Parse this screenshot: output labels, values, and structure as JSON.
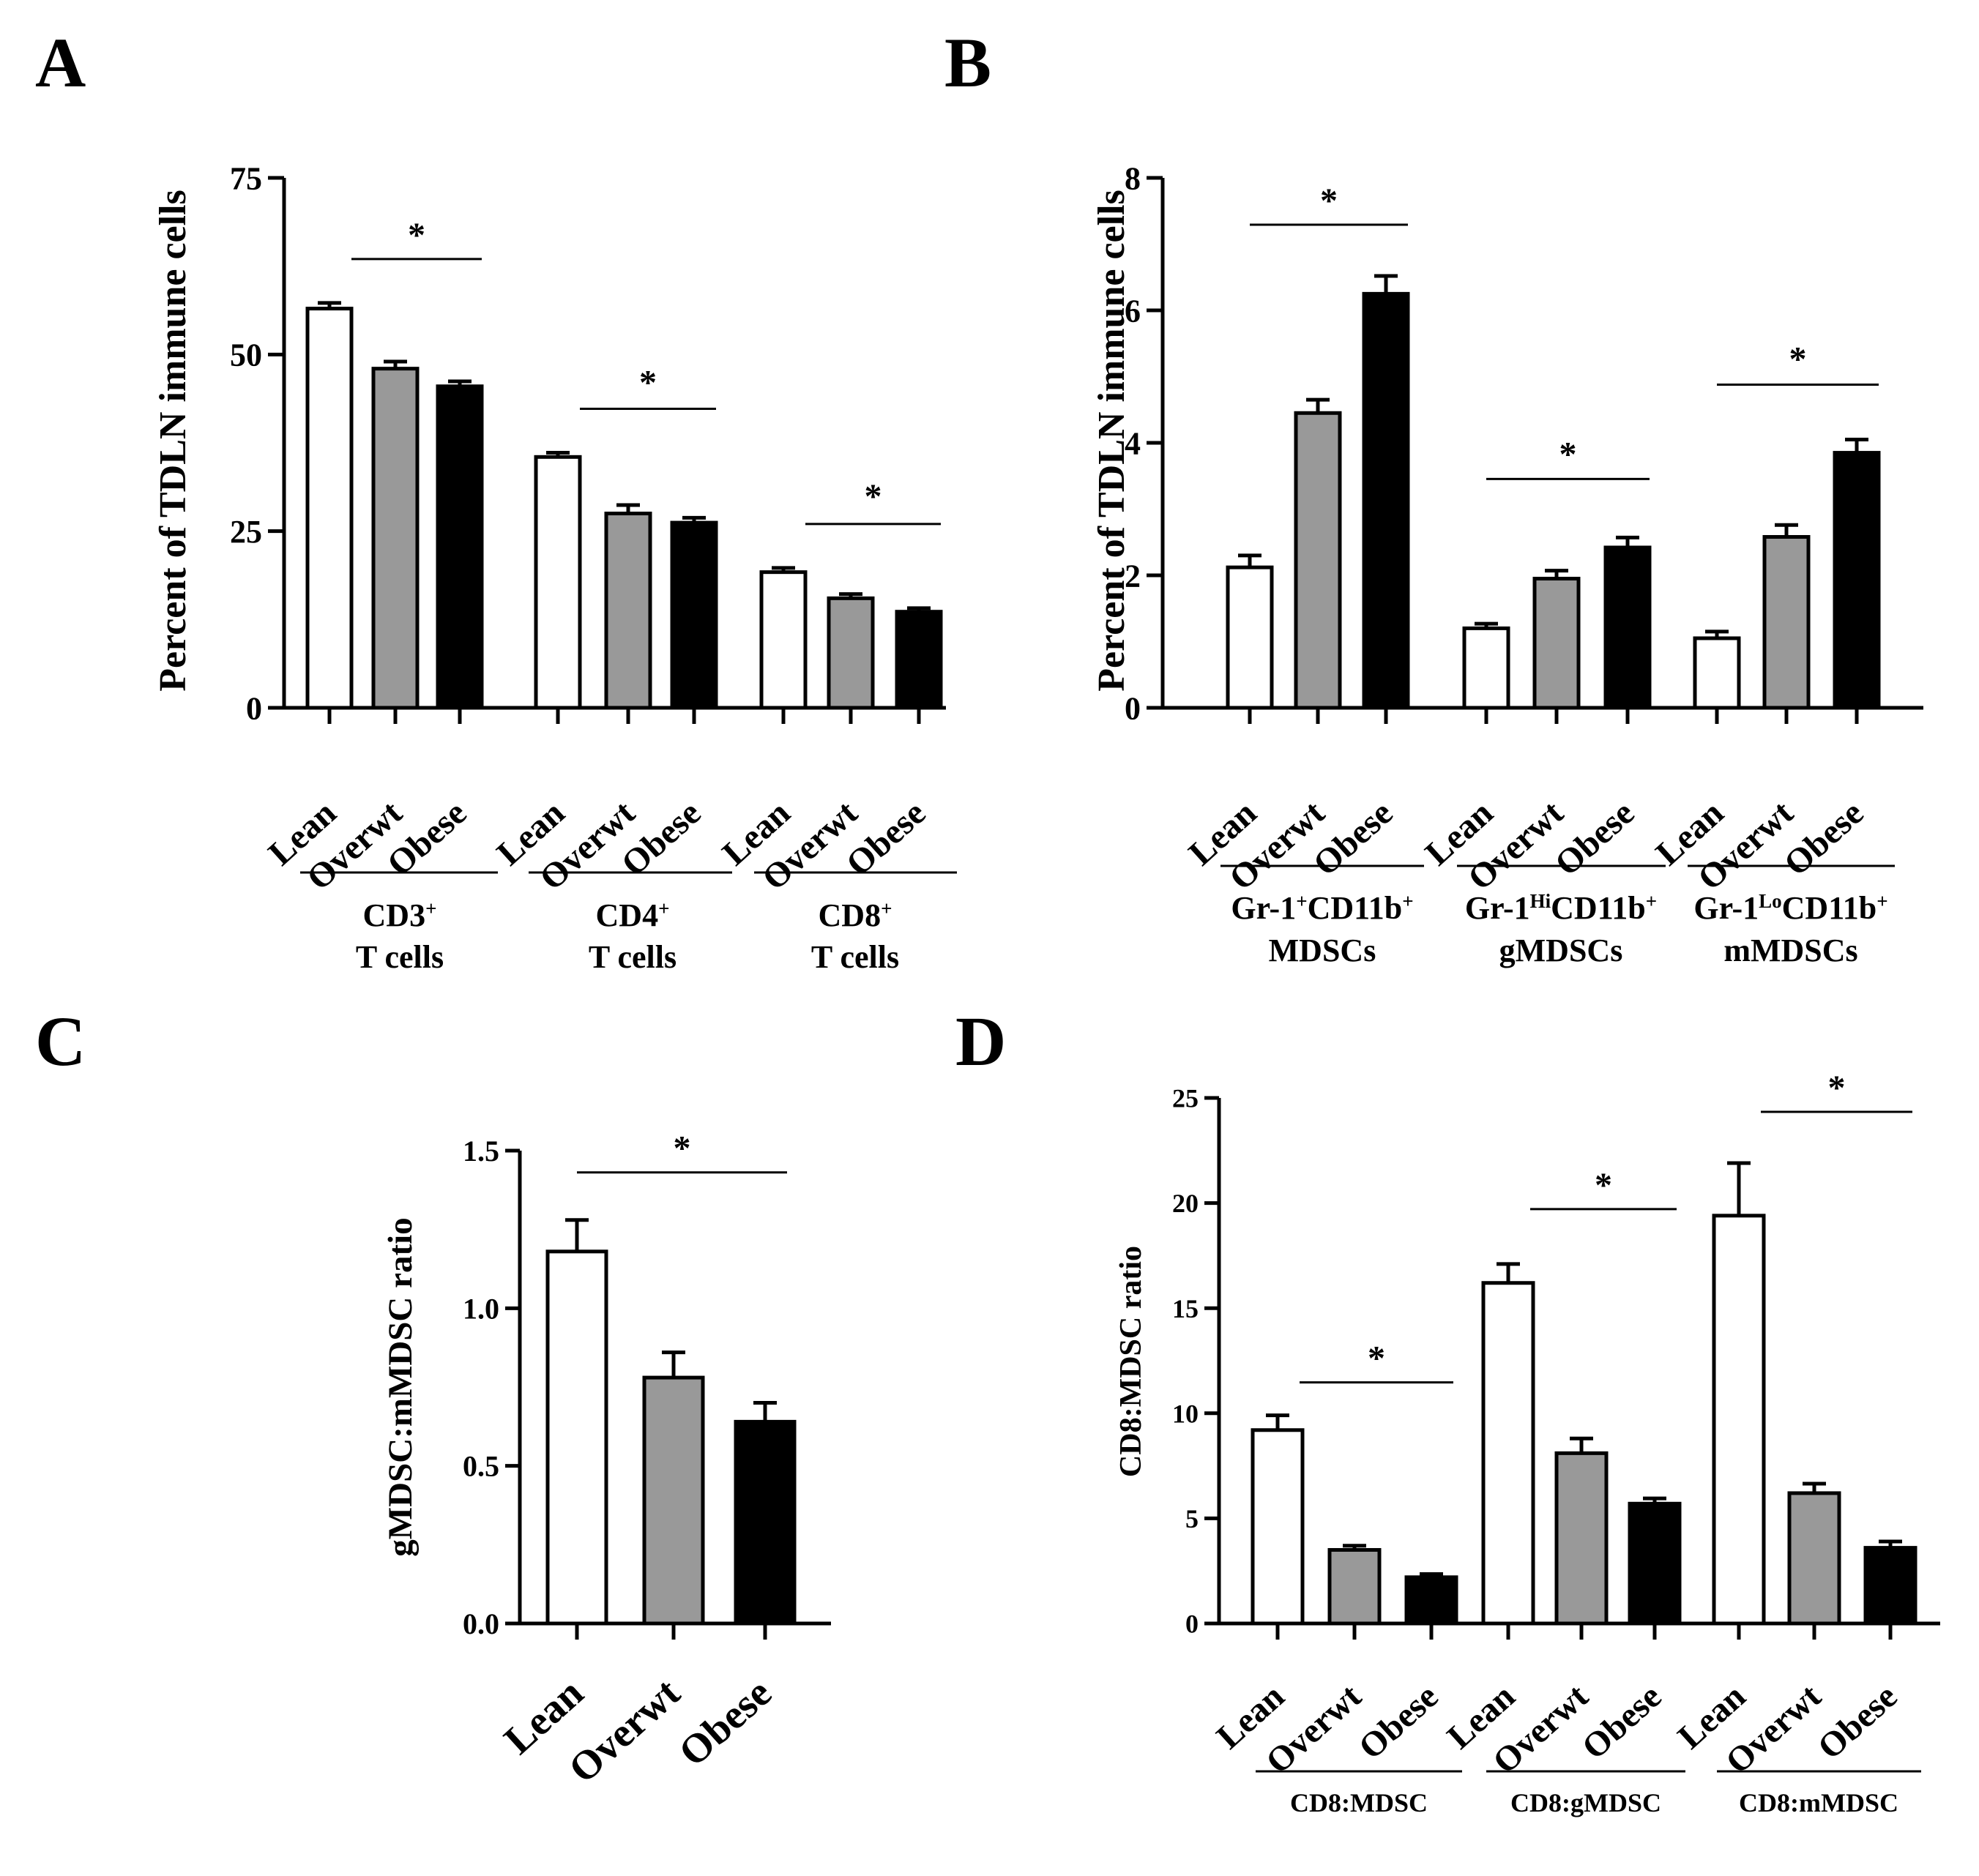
{
  "chart_data": [
    {
      "panel_letter": "A",
      "type": "bar",
      "ylabel": "Percent of TDLN immune cells",
      "ylim": [
        0,
        75
      ],
      "yticks": [
        "0",
        "25",
        "50",
        "75"
      ],
      "bar_labels": [
        "Lean",
        "Overwt",
        "Obese"
      ],
      "bar_colors": [
        "#ffffff",
        "#999999",
        "#000000"
      ],
      "groups": [
        {
          "label_lines": [
            "CD3|+",
            "T cells"
          ],
          "values": [
            56.5,
            48.0,
            45.5
          ],
          "errors": [
            0.8,
            1.0,
            0.7
          ],
          "sig": "*"
        },
        {
          "label_lines": [
            "CD4|+",
            "T cells"
          ],
          "values": [
            35.5,
            27.5,
            26.2
          ],
          "errors": [
            0.6,
            1.2,
            0.7
          ],
          "sig": "*"
        },
        {
          "label_lines": [
            "CD8|+",
            "T cells"
          ],
          "values": [
            19.2,
            15.5,
            13.6
          ],
          "errors": [
            0.6,
            0.6,
            0.5
          ],
          "sig": "*"
        }
      ]
    },
    {
      "panel_letter": "B",
      "type": "bar",
      "ylabel": "Percent of TDLN immune cells",
      "ylim": [
        0,
        8
      ],
      "yticks": [
        "0",
        "2",
        "4",
        "6",
        "8"
      ],
      "bar_labels": [
        "Lean",
        "Overwt",
        "Obese"
      ],
      "bar_colors": [
        "#ffffff",
        "#999999",
        "#000000"
      ],
      "groups": [
        {
          "label_lines": [
            "Gr-1|+|CD11b|+",
            "MDSCs"
          ],
          "values": [
            2.12,
            4.45,
            6.25
          ],
          "errors": [
            0.18,
            0.2,
            0.27
          ],
          "sig": "*"
        },
        {
          "label_lines": [
            "Gr-1|Hi|CD11b|+",
            "gMDSCs"
          ],
          "values": [
            1.2,
            1.95,
            2.42
          ],
          "errors": [
            0.07,
            0.12,
            0.15
          ],
          "sig": "*"
        },
        {
          "label_lines": [
            "Gr-1|Lo|CD11b|+",
            "mMDSCs"
          ],
          "values": [
            1.05,
            2.58,
            3.85
          ],
          "errors": [
            0.1,
            0.18,
            0.2
          ],
          "sig": "*"
        }
      ]
    },
    {
      "panel_letter": "C",
      "type": "bar",
      "ylabel": "gMDSC:mMDSC ratio",
      "ylim": [
        0,
        1.5
      ],
      "yticks": [
        "0.0",
        "0.5",
        "1.0",
        "1.5"
      ],
      "bar_labels": [
        "Lean",
        "Overwt",
        "Obese"
      ],
      "bar_colors": [
        "#ffffff",
        "#999999",
        "#000000"
      ],
      "groups": [
        {
          "label_lines": [],
          "values": [
            1.18,
            0.78,
            0.64
          ],
          "errors": [
            0.1,
            0.08,
            0.06
          ],
          "sig": "*"
        }
      ]
    },
    {
      "panel_letter": "D",
      "type": "bar",
      "ylabel": "CD8:MDSC ratio",
      "ylim": [
        0,
        25
      ],
      "yticks": [
        "0",
        "5",
        "10",
        "15",
        "20",
        "25"
      ],
      "bar_labels": [
        "Lean",
        "Overwt",
        "Obese"
      ],
      "bar_colors": [
        "#ffffff",
        "#999999",
        "#000000"
      ],
      "groups": [
        {
          "label_lines": [
            "CD8:MDSC"
          ],
          "values": [
            9.2,
            3.5,
            2.2
          ],
          "errors": [
            0.7,
            0.2,
            0.15
          ],
          "sig": "*"
        },
        {
          "label_lines": [
            "CD8:gMDSC"
          ],
          "values": [
            16.2,
            8.1,
            5.7
          ],
          "errors": [
            0.9,
            0.7,
            0.25
          ],
          "sig": "*"
        },
        {
          "label_lines": [
            "CD8:mMDSC"
          ],
          "values": [
            19.4,
            6.2,
            3.6
          ],
          "errors": [
            2.5,
            0.45,
            0.3
          ],
          "sig": "*"
        }
      ]
    }
  ]
}
